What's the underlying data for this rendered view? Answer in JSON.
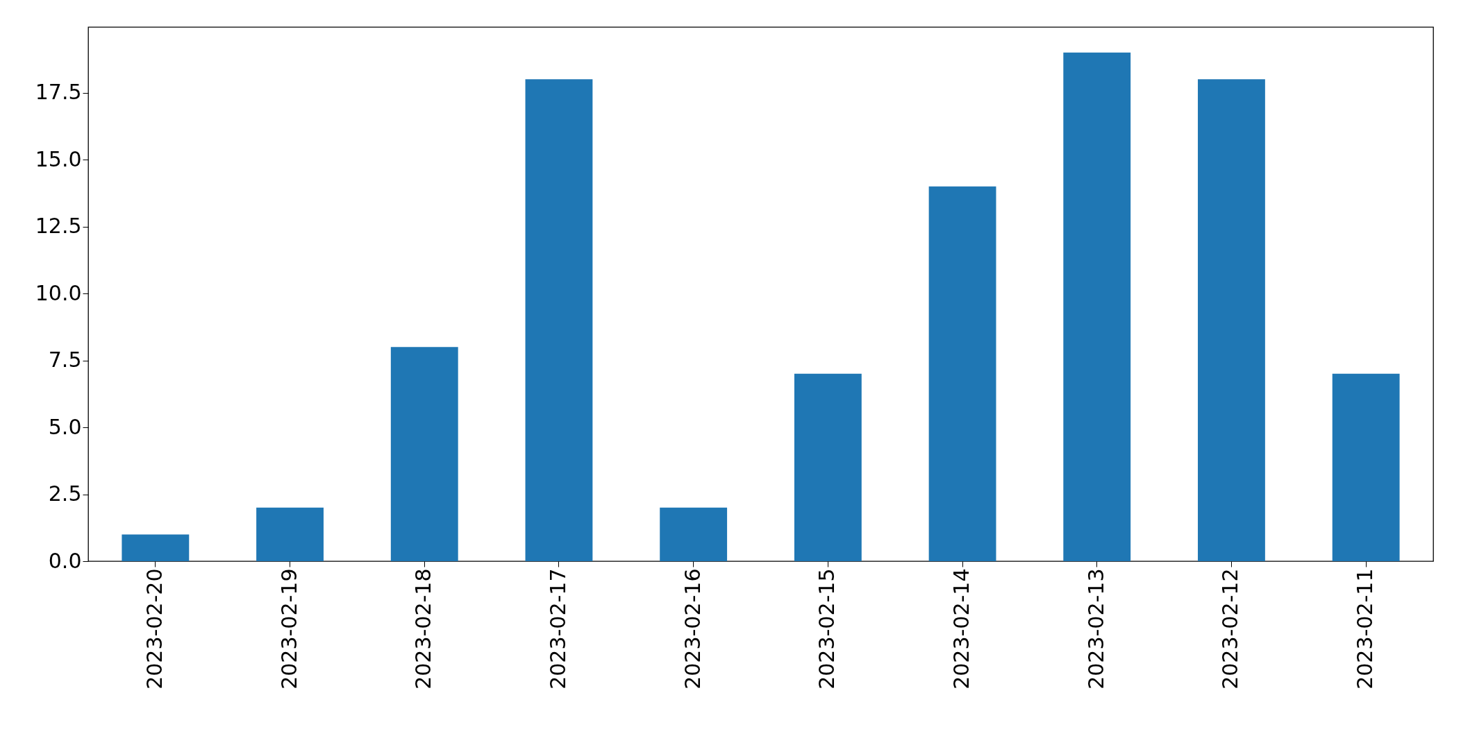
{
  "chart_data": {
    "type": "bar",
    "categories": [
      "2023-02-20",
      "2023-02-19",
      "2023-02-18",
      "2023-02-17",
      "2023-02-16",
      "2023-02-15",
      "2023-02-14",
      "2023-02-13",
      "2023-02-12",
      "2023-02-11"
    ],
    "values": [
      1,
      2,
      8,
      18,
      2,
      7,
      14,
      19,
      18,
      7
    ],
    "color": "#1f77b4",
    "ylim": [
      0,
      19.95
    ],
    "yticks": [
      {
        "value": 0,
        "label": "0.0"
      },
      {
        "value": 2.5,
        "label": "2.5"
      },
      {
        "value": 5,
        "label": "5.0"
      },
      {
        "value": 7.5,
        "label": "7.5"
      },
      {
        "value": 10,
        "label": "10.0"
      },
      {
        "value": 12.5,
        "label": "12.5"
      },
      {
        "value": 15,
        "label": "15.0"
      },
      {
        "value": 17.5,
        "label": "17.5"
      }
    ],
    "grid": false
  }
}
